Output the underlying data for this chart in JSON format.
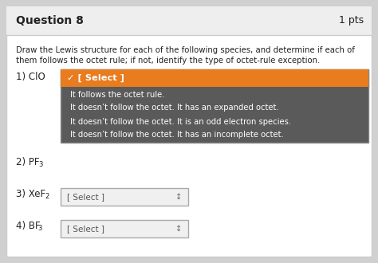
{
  "title": "Question 8",
  "pts": "1 pts",
  "description_line1": "Draw the Lewis structure for each of the following species, and determine if each of",
  "description_line2": "them follows the octet rule; if not, identify the type of octet-rule exception.",
  "dropdown_label": "[ Select ]",
  "dropdown_selected_label": "✓ [ Select ]",
  "dropdown_options": [
    "It follows the octet rule.",
    "It doesn’t follow the octet. It has an expanded octet.",
    "It doesn’t follow the octet. It is an odd electron species.",
    "It doesn’t follow the octet. It has an incomplete octet."
  ],
  "header_bg": "#eeeeee",
  "header_border": "#cccccc",
  "body_bg": "#ffffff",
  "title_color": "#222222",
  "text_color": "#222222",
  "dropdown_bg": "#f0f0f0",
  "dropdown_border": "#aaaaaa",
  "dropdown_open_bg": "#5a5a5a",
  "dropdown_selected_bg": "#e87c1e",
  "dropdown_text_color": "#ffffff",
  "dropdown_option_color": "#ffffff",
  "outer_bg": "#d0d0d0"
}
